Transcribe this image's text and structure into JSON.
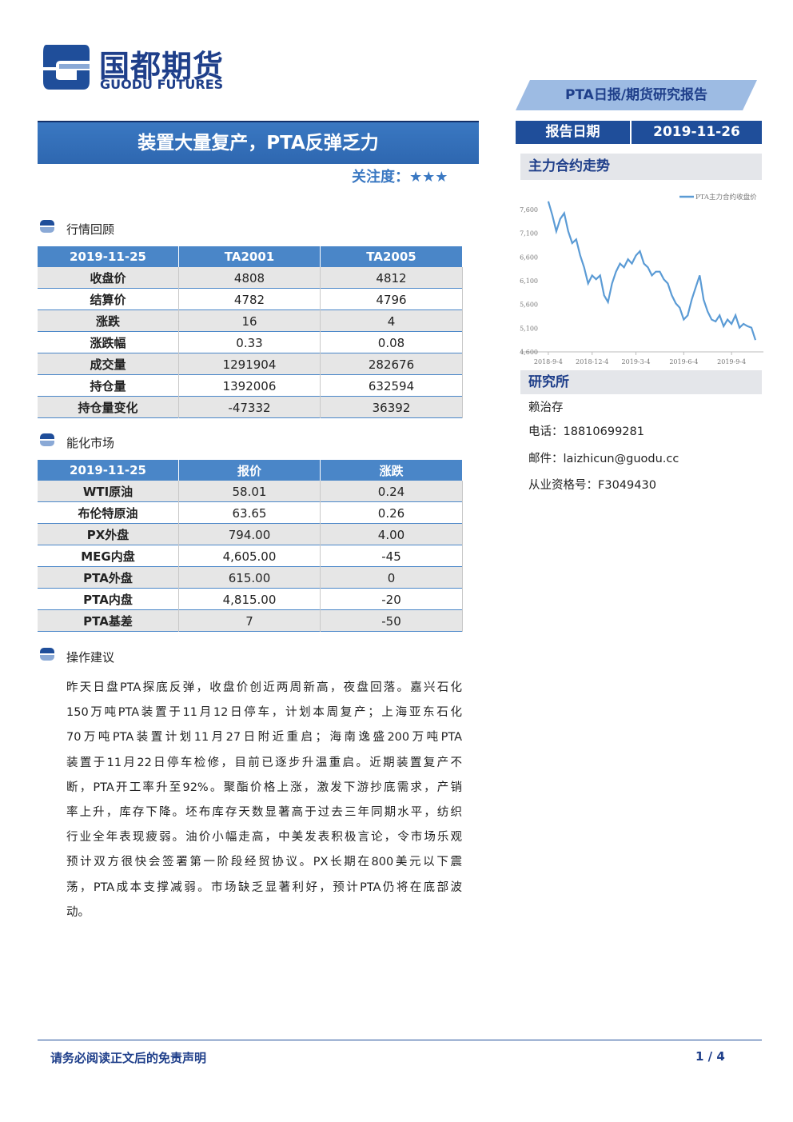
{
  "logo": {
    "name": "国都期货",
    "name_en": "GUODU FUTURES"
  },
  "report_type": "PTA日报/期货研究报告",
  "title": "装置大量复产，PTA反弹乏力",
  "attention": {
    "label": "关注度：",
    "stars": "★★★"
  },
  "report_date": {
    "label": "报告日期",
    "value": "2019-11-26"
  },
  "chart_section": "主力合约走势",
  "chart_data": {
    "type": "line",
    "series": [
      {
        "name": "PTA主力合约收盘价",
        "color": "#5b9bd5",
        "values": [
          7770,
          7480,
          7140,
          7400,
          7520,
          7140,
          6890,
          6970,
          6630,
          6380,
          6040,
          6210,
          6130,
          6210,
          5790,
          5650,
          6040,
          6290,
          6460,
          6380,
          6550,
          6460,
          6630,
          6720,
          6460,
          6380,
          6210,
          6290,
          6290,
          6130,
          6040,
          5790,
          5620,
          5530,
          5280,
          5370,
          5700,
          5960,
          6210,
          5700,
          5450,
          5280,
          5240,
          5370,
          5140,
          5280,
          5190,
          5370,
          5110,
          5190,
          5140,
          5110,
          4850
        ]
      }
    ],
    "xlim": [
      -7,
      54
    ],
    "xticks": [
      {
        "value": 0,
        "label": "2018-9-4"
      },
      {
        "value": 11,
        "label": "2018-12-4"
      },
      {
        "value": 22,
        "label": "2019-3-4"
      },
      {
        "value": 34,
        "label": "2019-6-4"
      },
      {
        "value": 46,
        "label": "2019-9-4"
      }
    ],
    "ylim": [
      4600,
      7800
    ],
    "yticks": [
      {
        "value": 4600,
        "label": "4,600"
      },
      {
        "value": 5100,
        "label": "5,100"
      },
      {
        "value": 5600,
        "label": "5,600"
      },
      {
        "value": 6100,
        "label": "6,100"
      },
      {
        "value": 6600,
        "label": "6,600"
      },
      {
        "value": 7100,
        "label": "7,100"
      },
      {
        "value": 7600,
        "label": "7,600"
      }
    ],
    "legend": "top-right"
  },
  "research": {
    "title": "研究所",
    "analyst": "赖治存",
    "phone": "电话：18810699281",
    "email": "邮件：laizhicun@guodu.cc",
    "license": "从业资格号：F3049430"
  },
  "sections": [
    {
      "title": "行情回顾",
      "table": {
        "header": [
          "2019-11-25",
          "TA2001",
          "TA2005"
        ],
        "rows": [
          [
            "收盘价",
            "4808",
            "4812"
          ],
          [
            "结算价",
            "4782",
            "4796"
          ],
          [
            "涨跌",
            "16",
            "4"
          ],
          [
            "涨跌幅",
            "0.33",
            "0.08"
          ],
          [
            "成交量",
            "1291904",
            "282676"
          ],
          [
            "持仓量",
            "1392006",
            "632594"
          ],
          [
            "持仓量变化",
            "-47332",
            "36392"
          ]
        ]
      }
    },
    {
      "title": "能化市场",
      "table": {
        "header": [
          "2019-11-25",
          "报价",
          "涨跌"
        ],
        "rows": [
          [
            "WTI原油",
            "58.01",
            "0.24"
          ],
          [
            "布伦特原油",
            "63.65",
            "0.26"
          ],
          [
            "PX外盘",
            "794.00",
            "4.00"
          ],
          [
            "MEG内盘",
            "4,605.00",
            "-45"
          ],
          [
            "PTA外盘",
            "615.00",
            "0"
          ],
          [
            "PTA内盘",
            "4,815.00",
            "-20"
          ],
          [
            "PTA基差",
            "7",
            "-50"
          ]
        ]
      }
    },
    {
      "title": "操作建议",
      "paragraph": [
        "昨天日盘PTA探底反弹，收盘价创近两周新高，夜盘回落。嘉兴石化",
        "150万吨PTA装置于11月12日停车，计划本周复产；上海亚东石化",
        "70万吨PTA装置计划11月27日附近重启；海南逸盛200万吨PTA",
        "装置于11月22日停车检修，目前已逐步升温重启。近期装置复产不",
        "断，PTA开工率升至92%。聚酯价格上涨，激发下游抄底需求，产销",
        "率上升，库存下降。坯布库存天数显著高于过去三年同期水平，纺织",
        "行业全年表现疲弱。油价小幅走高，中美发表积极言论，令市场乐观",
        "预计双方很快会签署第一阶段经贸协议。PX长期在800美元以下震",
        "荡，PTA成本支撑减弱。市场缺乏显著利好，预计PTA仍将在底部波",
        "动。"
      ]
    }
  ],
  "footer": {
    "disclaimer": "请务必阅读正文后的免责声明",
    "page": "1 / 4"
  }
}
